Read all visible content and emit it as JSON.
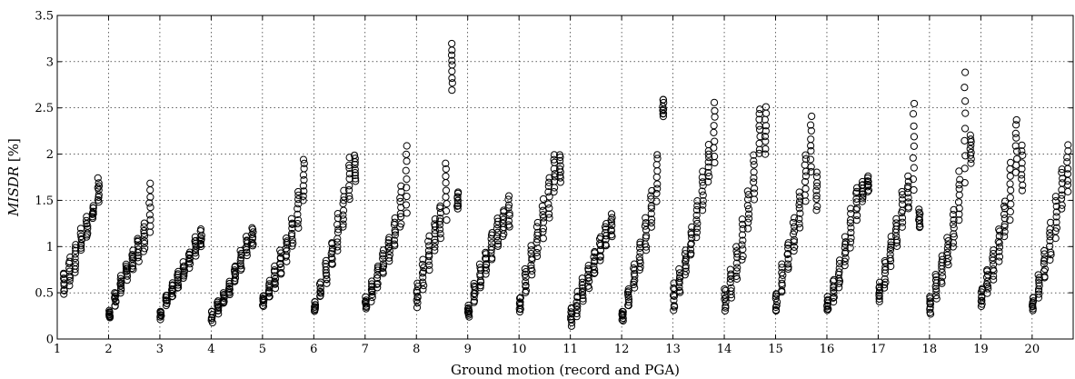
{
  "chart_data": {
    "type": "scatter",
    "title": "",
    "xlabel": "Ground motion (record and PGA)",
    "ylabel_main": "MISDR",
    "ylabel_unit": " [%]",
    "xlim": [
      1,
      20.8
    ],
    "ylim": [
      0,
      3.5
    ],
    "xticks": [
      1,
      2,
      3,
      4,
      5,
      6,
      7,
      8,
      9,
      10,
      11,
      12,
      13,
      14,
      15,
      16,
      17,
      18,
      19,
      20
    ],
    "yticks": [
      "0",
      "0.5",
      "1",
      "1.5",
      "2",
      "2.5",
      "3",
      "3.5"
    ],
    "grid": true,
    "marker": "open-circle",
    "records": [
      {
        "record": 1,
        "groups": [
          [
            0.38,
            0.52
          ],
          [
            0.48,
            0.72
          ],
          [
            0.58,
            0.88
          ],
          [
            0.72,
            1.02
          ],
          [
            0.95,
            1.18
          ],
          [
            1.1,
            1.32
          ],
          [
            1.3,
            1.45
          ],
          [
            1.48,
            1.73
          ]
        ]
      },
      {
        "record": 2,
        "groups": [
          [
            0.22,
            0.3
          ],
          [
            0.35,
            0.5
          ],
          [
            0.5,
            0.68
          ],
          [
            0.65,
            0.82
          ],
          [
            0.75,
            0.95
          ],
          [
            0.85,
            1.1
          ],
          [
            0.95,
            1.25
          ],
          [
            1.15,
            1.67
          ]
        ]
      },
      {
        "record": 3,
        "groups": [
          [
            0.22,
            0.3
          ],
          [
            0.36,
            0.48
          ],
          [
            0.45,
            0.6
          ],
          [
            0.55,
            0.72
          ],
          [
            0.65,
            0.82
          ],
          [
            0.78,
            0.95
          ],
          [
            0.9,
            1.1
          ],
          [
            1.0,
            1.18
          ]
        ]
      },
      {
        "record": 4,
        "groups": [
          [
            0.18,
            0.3
          ],
          [
            0.28,
            0.4
          ],
          [
            0.38,
            0.5
          ],
          [
            0.48,
            0.62
          ],
          [
            0.62,
            0.8
          ],
          [
            0.75,
            0.95
          ],
          [
            0.9,
            1.1
          ],
          [
            1.0,
            1.2
          ]
        ]
      },
      {
        "record": 5,
        "groups": [
          [
            0.35,
            0.48
          ],
          [
            0.45,
            0.62
          ],
          [
            0.55,
            0.78
          ],
          [
            0.7,
            0.95
          ],
          [
            0.85,
            1.1
          ],
          [
            1.0,
            1.3
          ],
          [
            1.2,
            1.6
          ],
          [
            1.5,
            1.95
          ]
        ]
      },
      {
        "record": 6,
        "groups": [
          [
            0.3,
            0.4
          ],
          [
            0.45,
            0.6
          ],
          [
            0.6,
            0.85
          ],
          [
            0.8,
            1.05
          ],
          [
            0.95,
            1.35
          ],
          [
            1.2,
            1.6
          ],
          [
            1.5,
            1.95
          ],
          [
            1.7,
            2.0
          ]
        ]
      },
      {
        "record": 7,
        "groups": [
          [
            0.32,
            0.45
          ],
          [
            0.42,
            0.62
          ],
          [
            0.55,
            0.8
          ],
          [
            0.7,
            0.95
          ],
          [
            0.85,
            1.1
          ],
          [
            1.0,
            1.3
          ],
          [
            1.2,
            1.65
          ],
          [
            1.35,
            2.1
          ]
        ]
      },
      {
        "record": 8,
        "groups": [
          [
            0.35,
            0.6
          ],
          [
            0.55,
            0.85
          ],
          [
            0.75,
            1.1
          ],
          [
            0.95,
            1.3
          ],
          [
            1.1,
            1.45
          ],
          [
            1.3,
            1.9
          ],
          [
            2.7,
            3.2
          ],
          [
            1.4,
            1.6
          ]
        ]
      },
      {
        "record": 9,
        "groups": [
          [
            0.25,
            0.35
          ],
          [
            0.4,
            0.6
          ],
          [
            0.55,
            0.8
          ],
          [
            0.7,
            0.95
          ],
          [
            0.85,
            1.15
          ],
          [
            1.0,
            1.3
          ],
          [
            1.1,
            1.4
          ],
          [
            1.2,
            1.55
          ]
        ]
      },
      {
        "record": 10,
        "groups": [
          [
            0.3,
            0.45
          ],
          [
            0.5,
            0.75
          ],
          [
            0.7,
            1.0
          ],
          [
            0.9,
            1.25
          ],
          [
            1.1,
            1.5
          ],
          [
            1.3,
            1.75
          ],
          [
            1.6,
            2.0
          ],
          [
            1.7,
            2.0
          ]
        ]
      },
      {
        "record": 11,
        "groups": [
          [
            0.15,
            0.35
          ],
          [
            0.25,
            0.5
          ],
          [
            0.4,
            0.65
          ],
          [
            0.55,
            0.8
          ],
          [
            0.7,
            0.95
          ],
          [
            0.85,
            1.1
          ],
          [
            1.0,
            1.25
          ],
          [
            1.1,
            1.35
          ]
        ]
      },
      {
        "record": 12,
        "groups": [
          [
            0.2,
            0.3
          ],
          [
            0.35,
            0.55
          ],
          [
            0.55,
            0.8
          ],
          [
            0.75,
            1.05
          ],
          [
            0.95,
            1.3
          ],
          [
            1.2,
            1.6
          ],
          [
            1.5,
            2.0
          ],
          [
            2.4,
            2.6
          ]
        ]
      },
      {
        "record": 13,
        "groups": [
          [
            0.3,
            0.6
          ],
          [
            0.5,
            0.75
          ],
          [
            0.7,
            0.95
          ],
          [
            0.9,
            1.2
          ],
          [
            1.1,
            1.5
          ],
          [
            1.4,
            1.8
          ],
          [
            1.7,
            2.1
          ],
          [
            1.9,
            2.55
          ]
        ]
      },
      {
        "record": 14,
        "groups": [
          [
            0.3,
            0.55
          ],
          [
            0.45,
            0.75
          ],
          [
            0.65,
            1.0
          ],
          [
            0.85,
            1.3
          ],
          [
            1.2,
            1.6
          ],
          [
            1.5,
            2.0
          ],
          [
            2.0,
            2.5
          ],
          [
            2.0,
            2.5
          ]
        ]
      },
      {
        "record": 15,
        "groups": [
          [
            0.3,
            0.5
          ],
          [
            0.5,
            0.8
          ],
          [
            0.75,
            1.05
          ],
          [
            0.95,
            1.3
          ],
          [
            1.2,
            1.6
          ],
          [
            1.5,
            2.0
          ],
          [
            1.8,
            2.4
          ],
          [
            1.4,
            1.8
          ]
        ]
      },
      {
        "record": 16,
        "groups": [
          [
            0.3,
            0.45
          ],
          [
            0.4,
            0.65
          ],
          [
            0.55,
            0.85
          ],
          [
            0.8,
            1.1
          ],
          [
            1.0,
            1.4
          ],
          [
            1.3,
            1.65
          ],
          [
            1.5,
            1.7
          ],
          [
            1.6,
            1.75
          ]
        ]
      },
      {
        "record": 17,
        "groups": [
          [
            0.4,
            0.6
          ],
          [
            0.55,
            0.85
          ],
          [
            0.8,
            1.1
          ],
          [
            1.0,
            1.3
          ],
          [
            1.2,
            1.6
          ],
          [
            1.4,
            1.75
          ],
          [
            1.6,
            2.55
          ],
          [
            1.2,
            1.4
          ]
        ]
      },
      {
        "record": 18,
        "groups": [
          [
            0.28,
            0.45
          ],
          [
            0.45,
            0.7
          ],
          [
            0.6,
            0.9
          ],
          [
            0.8,
            1.1
          ],
          [
            1.0,
            1.4
          ],
          [
            1.3,
            1.8
          ],
          [
            1.7,
            2.88
          ],
          [
            1.9,
            2.2
          ]
        ]
      },
      {
        "record": 19,
        "groups": [
          [
            0.35,
            0.55
          ],
          [
            0.5,
            0.75
          ],
          [
            0.65,
            0.95
          ],
          [
            0.85,
            1.2
          ],
          [
            1.1,
            1.5
          ],
          [
            1.3,
            1.9
          ],
          [
            1.8,
            2.38
          ],
          [
            1.6,
            2.1
          ]
        ]
      },
      {
        "record": 20,
        "groups": [
          [
            0.3,
            0.45
          ],
          [
            0.45,
            0.7
          ],
          [
            0.65,
            0.95
          ],
          [
            0.85,
            1.25
          ],
          [
            1.1,
            1.55
          ],
          [
            1.4,
            1.85
          ],
          [
            1.6,
            2.1
          ],
          [
            1.7,
            2.55
          ]
        ]
      }
    ]
  }
}
